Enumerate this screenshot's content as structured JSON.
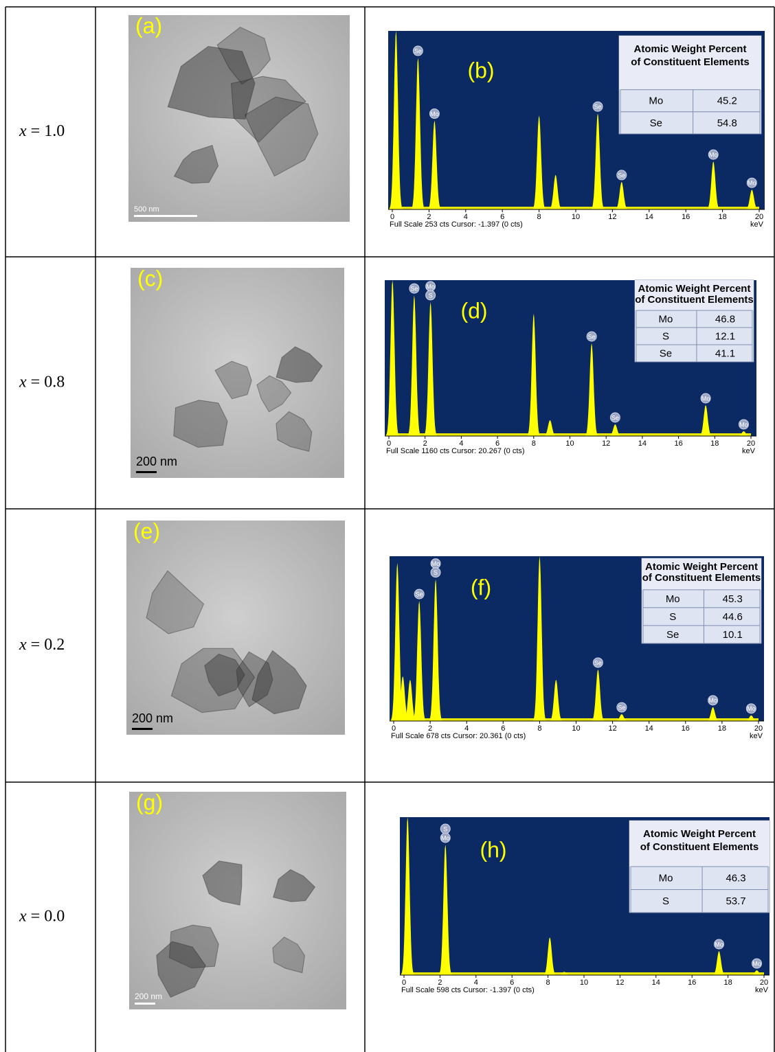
{
  "rows": [
    {
      "label": {
        "variable": "x",
        "value": "= 1.0"
      },
      "tem": {
        "panel": "(a)",
        "scale_bar": "500 nm"
      },
      "eds": {
        "panel": "(b)",
        "table": {
          "header": [
            "Atomic Weight Percent",
            "of Constituent Elements"
          ],
          "rows": [
            [
              "Mo",
              45.2
            ],
            [
              "Se",
              54.8
            ]
          ]
        },
        "xlim": [
          0,
          20
        ],
        "xticks": [
          0,
          2,
          4,
          6,
          8,
          10,
          12,
          14,
          16,
          18,
          20
        ],
        "x_unit": "keV",
        "ylim": [
          0,
          253
        ],
        "footer": "Full Scale 253 cts Cursor: -1.397 (0 cts)",
        "peaks": [
          {
            "x": 0.2,
            "counts": 253
          },
          {
            "x": 1.4,
            "counts": 215,
            "labels": [
              "Se"
            ]
          },
          {
            "x": 2.3,
            "counts": 126,
            "labels": [
              "Mo"
            ]
          },
          {
            "x": 8.0,
            "counts": 133
          },
          {
            "x": 8.9,
            "counts": 49
          },
          {
            "x": 11.2,
            "counts": 136,
            "labels": [
              "Se"
            ]
          },
          {
            "x": 12.5,
            "counts": 39,
            "labels": [
              "Se"
            ]
          },
          {
            "x": 17.5,
            "counts": 68,
            "labels": [
              "Mo"
            ]
          },
          {
            "x": 19.6,
            "counts": 28,
            "labels": [
              "Mo"
            ]
          }
        ]
      }
    },
    {
      "label": {
        "variable": "x",
        "value": "= 0.8"
      },
      "tem": {
        "panel": "(c)",
        "scale_bar": "200 nm"
      },
      "eds": {
        "panel": "(d)",
        "table": {
          "header": [
            "Atomic Weight Percent",
            "of Constituent Elements"
          ],
          "rows": [
            [
              "Mo",
              46.8
            ],
            [
              "S",
              12.1
            ],
            [
              "Se",
              41.1
            ]
          ]
        },
        "xlim": [
          0,
          20
        ],
        "xticks": [
          0,
          2,
          4,
          6,
          8,
          10,
          12,
          14,
          16,
          18,
          20
        ],
        "x_unit": "keV",
        "ylim": [
          0,
          1160
        ],
        "footer": "Full Scale 1160 cts Cursor: 20.267 (0 cts)",
        "peaks": [
          {
            "x": 0.2,
            "counts": 1160
          },
          {
            "x": 1.4,
            "counts": 1047,
            "labels": [
              "Se"
            ]
          },
          {
            "x": 2.3,
            "counts": 997,
            "labels": [
              "Mo",
              "S"
            ]
          },
          {
            "x": 8.0,
            "counts": 910
          },
          {
            "x": 8.9,
            "counts": 118
          },
          {
            "x": 11.2,
            "counts": 690,
            "labels": [
              "Se"
            ]
          },
          {
            "x": 12.5,
            "counts": 87,
            "labels": [
              "Se"
            ]
          },
          {
            "x": 17.5,
            "counts": 230,
            "labels": [
              "Mo"
            ]
          },
          {
            "x": 19.6,
            "counts": 36,
            "labels": [
              "Mo"
            ]
          }
        ]
      }
    },
    {
      "label": {
        "variable": "x",
        "value": "= 0.2"
      },
      "tem": {
        "panel": "(e)",
        "scale_bar": "200 nm"
      },
      "eds": {
        "panel": "(f)",
        "table": {
          "header": [
            "Atomic Weight Percent",
            "of Constituent Elements"
          ],
          "rows": [
            [
              "Mo",
              45.3
            ],
            [
              "S",
              44.6
            ],
            [
              "Se",
              10.1
            ]
          ]
        },
        "xlim": [
          0,
          20
        ],
        "xticks": [
          0,
          2,
          4,
          6,
          8,
          10,
          12,
          14,
          16,
          18,
          20
        ],
        "x_unit": "keV",
        "ylim": [
          0,
          678
        ],
        "footer": "Full Scale 678 cts Cursor: 20.361 (0 cts)",
        "peaks": [
          {
            "x": 0.2,
            "counts": 650
          },
          {
            "x": 0.5,
            "counts": 184
          },
          {
            "x": 0.9,
            "counts": 170
          },
          {
            "x": 1.4,
            "counts": 494,
            "labels": [
              "Se"
            ]
          },
          {
            "x": 2.3,
            "counts": 583,
            "labels": [
              "Mo",
              "S"
            ]
          },
          {
            "x": 8.0,
            "counts": 678
          },
          {
            "x": 8.9,
            "counts": 170
          },
          {
            "x": 11.2,
            "counts": 212,
            "labels": [
              "Se"
            ]
          },
          {
            "x": 12.5,
            "counts": 28,
            "labels": [
              "Se"
            ]
          },
          {
            "x": 17.5,
            "counts": 57,
            "labels": [
              "Mo"
            ]
          },
          {
            "x": 19.6,
            "counts": 23,
            "labels": [
              "Mo"
            ]
          }
        ]
      }
    },
    {
      "label": {
        "variable": "x",
        "value": "= 0.0"
      },
      "tem": {
        "panel": "(g)",
        "scale_bar": "200 nm"
      },
      "eds": {
        "panel": "(h)",
        "table": {
          "header": [
            "Atomic Weight Percent",
            "of Constituent Elements"
          ],
          "rows": [
            [
              "Mo",
              46.3
            ],
            [
              "S",
              53.7
            ]
          ]
        },
        "xlim": [
          0,
          20
        ],
        "xticks": [
          0,
          2,
          4,
          6,
          8,
          10,
          12,
          14,
          16,
          18,
          20
        ],
        "x_unit": "keV",
        "ylim": [
          0,
          598
        ],
        "footer": "Full Scale 598 cts Cursor: -1.397 (0 cts)",
        "peaks": [
          {
            "x": 0.2,
            "counts": 598
          },
          {
            "x": 2.3,
            "counts": 494,
            "labels": [
              "S",
              "Mo"
            ]
          },
          {
            "x": 8.1,
            "counts": 143
          },
          {
            "x": 8.9,
            "counts": 12
          },
          {
            "x": 17.5,
            "counts": 91,
            "labels": [
              "Mo"
            ]
          },
          {
            "x": 19.6,
            "counts": 18,
            "labels": [
              "Mo"
            ]
          }
        ]
      }
    }
  ]
}
